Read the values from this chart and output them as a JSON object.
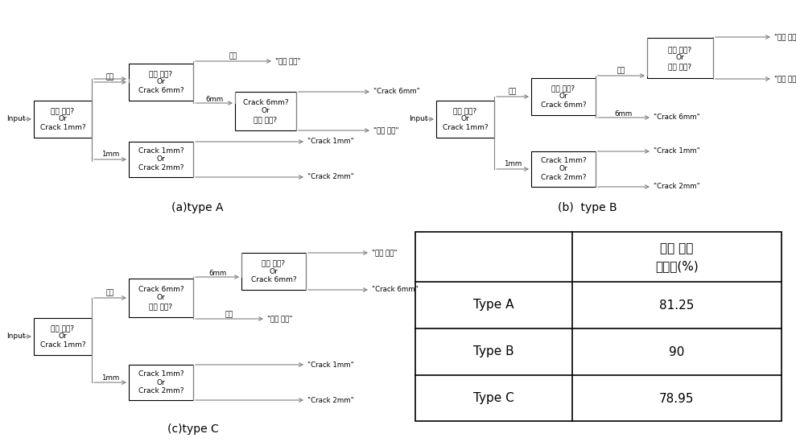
{
  "title_a": "(a)type A",
  "title_b": "(b)  type B",
  "title_c": "(c)type C",
  "table_header_line1": "고장 진단",
  "table_header_line2": "성공률(%)",
  "table_rows": [
    [
      "Type A",
      "81.25"
    ],
    [
      "Type B",
      "90"
    ],
    [
      "Type C",
      "78.95"
    ]
  ],
  "bg_color": "#ffffff",
  "box_color": "#000000",
  "text_color": "#000000",
  "line_color": "#808080",
  "lw": 0.8
}
